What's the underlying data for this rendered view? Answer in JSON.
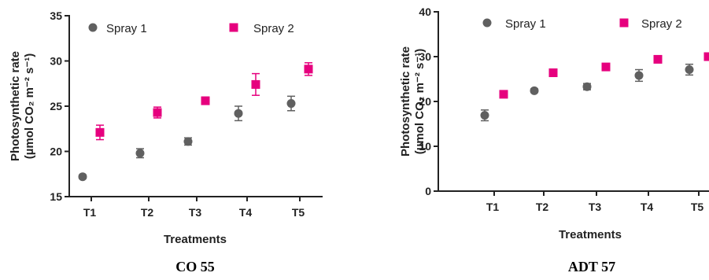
{
  "chart_data": [
    {
      "type": "scatter",
      "caption": "CO 55",
      "xlabel": "Treatments",
      "ylabel_line1": "Photosynthetic rate",
      "ylabel_line2": "(µmol CO₂ m⁻² s⁻¹)",
      "categories": [
        "T1",
        "T2",
        "T3",
        "T4",
        "T5"
      ],
      "ylim": [
        15,
        35
      ],
      "yticks": [
        "15",
        "20",
        "25",
        "30",
        "35"
      ],
      "legend_position": "top",
      "series": [
        {
          "name": "Spray 1",
          "marker": "circle",
          "color": "#606060",
          "values": [
            17.2,
            19.8,
            21.1,
            24.2,
            25.3
          ],
          "errors": [
            0.2,
            0.5,
            0.4,
            0.8,
            0.8
          ]
        },
        {
          "name": "Spray 2",
          "marker": "square",
          "color": "#e6007e",
          "values": [
            22.1,
            24.3,
            25.6,
            27.4,
            29.1
          ],
          "errors": [
            0.8,
            0.6,
            0.4,
            1.2,
            0.7
          ]
        }
      ]
    },
    {
      "type": "scatter",
      "caption": "ADT 57",
      "xlabel": "Treatments",
      "ylabel_line1": "Photosynthetic rate",
      "ylabel_line2": "(µmol CO₂ m⁻² s⁻¹)",
      "categories": [
        "T1",
        "T2",
        "T3",
        "T4",
        "T5"
      ],
      "ylim": [
        0,
        40
      ],
      "yticks": [
        "0",
        "10",
        "20",
        "30",
        "40"
      ],
      "legend_position": "top",
      "series": [
        {
          "name": "Spray 1",
          "marker": "circle",
          "color": "#606060",
          "values": [
            16.9,
            22.4,
            23.3,
            25.8,
            27.1
          ],
          "errors": [
            1.2,
            0.4,
            0.7,
            1.3,
            1.2
          ]
        },
        {
          "name": "Spray 2",
          "marker": "square",
          "color": "#e6007e",
          "values": [
            21.6,
            26.4,
            27.7,
            29.4,
            30.0
          ],
          "errors": [
            0.3,
            0.3,
            0.3,
            0.3,
            0.3
          ]
        }
      ]
    }
  ]
}
